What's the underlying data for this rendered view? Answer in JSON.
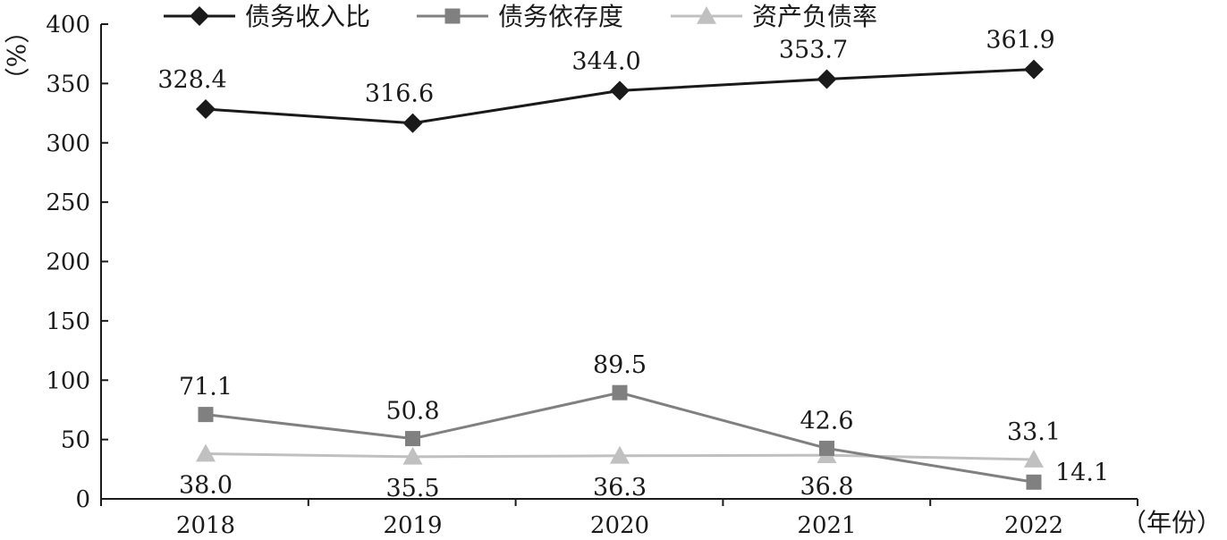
{
  "chart_data": {
    "type": "line",
    "categories": [
      "2018",
      "2019",
      "2020",
      "2021",
      "2022"
    ],
    "ylim": [
      0,
      400
    ],
    "yticks": [
      0,
      50,
      100,
      150,
      200,
      250,
      300,
      350,
      400
    ],
    "ylabel": "（%）",
    "xlabel": "（年份）",
    "grid": false,
    "legend_position": "top",
    "series": [
      {
        "name": "债务收入比",
        "values": [
          328.4,
          316.6,
          344.0,
          353.7,
          361.9
        ],
        "labels": [
          "328.4",
          "316.6",
          "344.0",
          "353.7",
          "361.9"
        ],
        "color": "#1a1a1a",
        "marker": "diamond",
        "label_side": [
          "above",
          "above",
          "above",
          "above",
          "above"
        ]
      },
      {
        "name": "债务依存度",
        "values": [
          71.1,
          50.8,
          89.5,
          42.6,
          14.1
        ],
        "labels": [
          "71.1",
          "50.8",
          "89.5",
          "42.6",
          "14.1"
        ],
        "color": "#808080",
        "marker": "square",
        "label_side": [
          "above",
          "above",
          "above",
          "above",
          "right"
        ]
      },
      {
        "name": "资产负债率",
        "values": [
          38.0,
          35.5,
          36.3,
          36.8,
          33.1
        ],
        "labels": [
          "38.0",
          "35.5",
          "36.3",
          "36.8",
          "33.1"
        ],
        "color": "#c0c0c0",
        "marker": "triangle",
        "label_side": [
          "below",
          "below",
          "below",
          "below",
          "above"
        ]
      }
    ]
  }
}
